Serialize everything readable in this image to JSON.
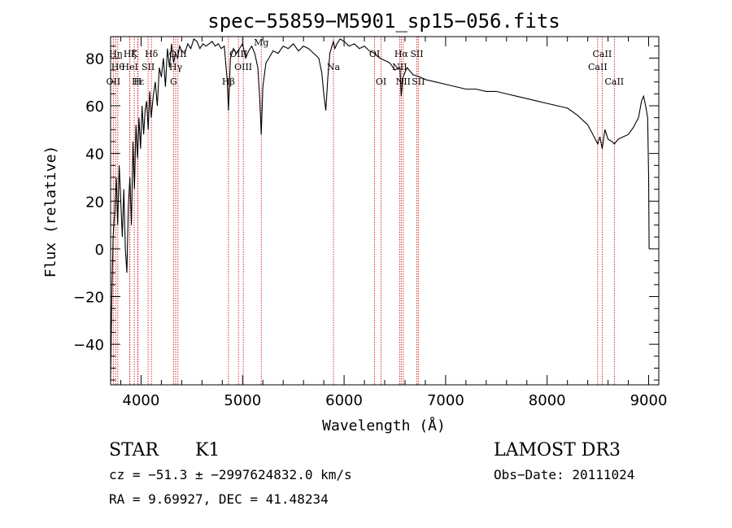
{
  "chart_data": {
    "type": "line",
    "title": "spec−55859−M5901_sp15−056.fits",
    "xlabel": "Wavelength (Å)",
    "ylabel": "Flux (relative)",
    "xlim": [
      3700,
      9100
    ],
    "ylim": [
      -57,
      89
    ],
    "xticks": [
      {
        "value": 4000,
        "label": "4000"
      },
      {
        "value": 5000,
        "label": "5000"
      },
      {
        "value": 6000,
        "label": "6000"
      },
      {
        "value": 7000,
        "label": "7000"
      },
      {
        "value": 8000,
        "label": "8000"
      },
      {
        "value": 9000,
        "label": "9000"
      }
    ],
    "yticks": [
      {
        "value": -40,
        "label": "−40"
      },
      {
        "value": -20,
        "label": "−20"
      },
      {
        "value": 0,
        "label": "0"
      },
      {
        "value": 20,
        "label": "20"
      },
      {
        "value": 40,
        "label": "40"
      },
      {
        "value": 60,
        "label": "60"
      },
      {
        "value": 80,
        "label": "80"
      }
    ],
    "series": [
      {
        "name": "flux",
        "x": [
          3700,
          3712,
          3725,
          3740,
          3755,
          3770,
          3785,
          3800,
          3815,
          3830,
          3845,
          3860,
          3875,
          3890,
          3905,
          3920,
          3935,
          3950,
          3965,
          3980,
          3995,
          4010,
          4025,
          4040,
          4055,
          4070,
          4085,
          4100,
          4120,
          4140,
          4160,
          4180,
          4200,
          4220,
          4240,
          4260,
          4280,
          4300,
          4320,
          4340,
          4360,
          4380,
          4400,
          4430,
          4460,
          4490,
          4520,
          4550,
          4580,
          4610,
          4640,
          4670,
          4700,
          4730,
          4760,
          4790,
          4820,
          4850,
          4861,
          4880,
          4910,
          4940,
          4970,
          5000,
          5030,
          5060,
          5090,
          5120,
          5150,
          5170,
          5184,
          5200,
          5230,
          5260,
          5300,
          5350,
          5400,
          5450,
          5500,
          5550,
          5600,
          5650,
          5700,
          5750,
          5780,
          5800,
          5820,
          5840,
          5860,
          5880,
          5895,
          5910,
          5930,
          5960,
          6000,
          6050,
          6100,
          6150,
          6200,
          6250,
          6300,
          6350,
          6400,
          6450,
          6500,
          6550,
          6563,
          6580,
          6620,
          6680,
          6750,
          6800,
          6900,
          7000,
          7100,
          7200,
          7300,
          7400,
          7500,
          7600,
          7700,
          7800,
          7900,
          8000,
          8100,
          8200,
          8300,
          8400,
          8450,
          8498,
          8520,
          8542,
          8570,
          8600,
          8640,
          8662,
          8700,
          8750,
          8800,
          8850,
          8900,
          8930,
          8950,
          8970,
          8990,
          9000,
          9005
        ],
        "values": [
          -55,
          -20,
          5,
          15,
          30,
          10,
          35,
          20,
          5,
          25,
          0,
          -10,
          18,
          30,
          10,
          45,
          25,
          52,
          38,
          55,
          42,
          60,
          48,
          58,
          62,
          50,
          66,
          55,
          64,
          70,
          60,
          76,
          72,
          80,
          68,
          84,
          76,
          86,
          78,
          82,
          80,
          85,
          83,
          82,
          86,
          84,
          88,
          87,
          84,
          86,
          85,
          86,
          87,
          85,
          86,
          84,
          85,
          70,
          58,
          80,
          84,
          82,
          84,
          86,
          80,
          83,
          85,
          82,
          76,
          62,
          48,
          68,
          78,
          80,
          83,
          82,
          85,
          84,
          86,
          83,
          85,
          84,
          82,
          80,
          74,
          65,
          58,
          72,
          82,
          85,
          87,
          84,
          86,
          88,
          87,
          85,
          86,
          84,
          85,
          83,
          82,
          80,
          79,
          78,
          75,
          76,
          64,
          72,
          76,
          73,
          72,
          71,
          70,
          69,
          68,
          67,
          67,
          66,
          66,
          65,
          64,
          63,
          62,
          61,
          60,
          59,
          56,
          52,
          48,
          44,
          47,
          42,
          50,
          46,
          45,
          44,
          46,
          47,
          48,
          51,
          55,
          62,
          64,
          60,
          55,
          30,
          0
        ]
      }
    ],
    "line_markers": [
      {
        "wl": 3727,
        "label": "OII",
        "row": 3
      },
      {
        "wl": 3750,
        "label": "Hη",
        "row": 1
      },
      {
        "wl": 3771,
        "label": "Hθ",
        "row": 2
      },
      {
        "wl": 3889,
        "label": "HeI",
        "row": 2
      },
      {
        "wl": 3890,
        "label": "Hζ",
        "row": 1
      },
      {
        "wl": 3933,
        "label": "K",
        "row": 1
      },
      {
        "wl": 3968,
        "label": "H",
        "row": 3
      },
      {
        "wl": 3970,
        "label": "Hε",
        "row": 3
      },
      {
        "wl": 4069,
        "label": "SII",
        "row": 2
      },
      {
        "wl": 4102,
        "label": "Hδ",
        "row": 1
      },
      {
        "wl": 4320,
        "label": "G",
        "row": 3
      },
      {
        "wl": 4341,
        "label": "Hγ",
        "row": 2
      },
      {
        "wl": 4363,
        "label": "OIII",
        "row": 1
      },
      {
        "wl": 4861,
        "label": "Hβ",
        "row": 3
      },
      {
        "wl": 4959,
        "label": "OIII",
        "row": 1
      },
      {
        "wl": 5007,
        "label": "OIII",
        "row": 2
      },
      {
        "wl": 5184,
        "label": "Mg",
        "row": 0
      },
      {
        "wl": 5895,
        "label": "Na",
        "row": 2
      },
      {
        "wl": 6300,
        "label": "OI",
        "row": 1
      },
      {
        "wl": 6364,
        "label": "OI",
        "row": 3
      },
      {
        "wl": 6548,
        "label": "NII",
        "row": 2
      },
      {
        "wl": 6563,
        "label": "Hα",
        "row": 1
      },
      {
        "wl": 6583,
        "label": "NII",
        "row": 3
      },
      {
        "wl": 6716,
        "label": "SII",
        "row": 1
      },
      {
        "wl": 6731,
        "label": "SII",
        "row": 3
      },
      {
        "wl": 8498,
        "label": "CaII",
        "row": 2
      },
      {
        "wl": 8542,
        "label": "CaII",
        "row": 1
      },
      {
        "wl": 8662,
        "label": "CaII",
        "row": 3
      }
    ]
  },
  "info": {
    "class": "STAR",
    "subclass": "K1",
    "survey": "LAMOST DR3",
    "cz": "cz = −51.3 ± −2997624832.0 km/s",
    "obsdate": "Obs−Date: 20111024",
    "radec": "RA =   9.69927, DEC =  41.48234"
  }
}
